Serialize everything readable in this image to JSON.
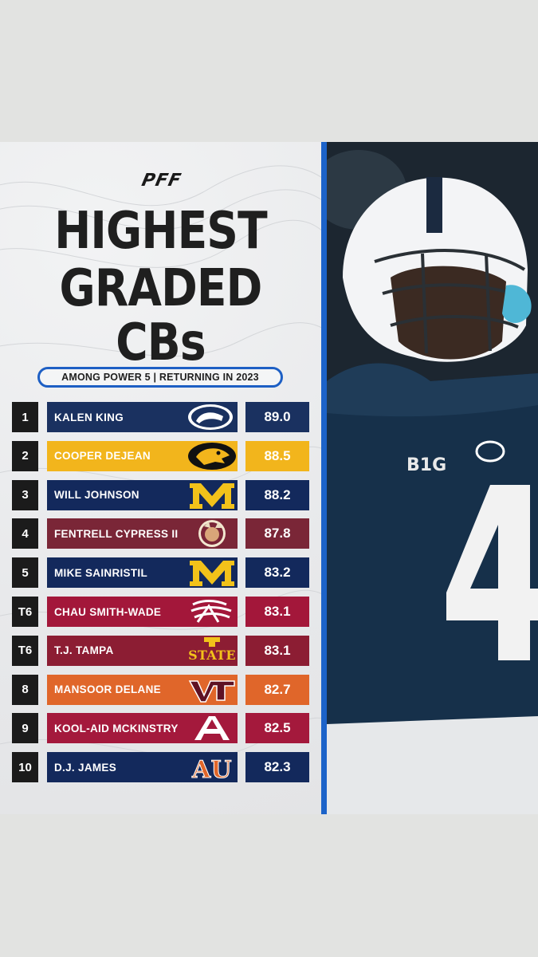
{
  "brand": {
    "logo": "PFF"
  },
  "header": {
    "title_line1": "HIGHEST",
    "title_line2": "GRADED",
    "title_line3": "CBs",
    "subtitle": "AMONG POWER 5 | RETURNING IN 2023"
  },
  "colors": {
    "accent_blue": "#1d5fc4",
    "divider_blue": "#1c63c9"
  },
  "players": [
    {
      "rank": "1",
      "name": "KALEN KING",
      "grade": "89.0",
      "team_logo": "penn-state-logo",
      "bg": "#1a3160",
      "fg": "#ffffff"
    },
    {
      "rank": "2",
      "name": "COOPER DEJEAN",
      "grade": "88.5",
      "team_logo": "iowa-hawkeye-logo",
      "bg": "#f2b51c",
      "fg": "#ffffff"
    },
    {
      "rank": "3",
      "name": "WILL JOHNSON",
      "grade": "88.2",
      "team_logo": "michigan-logo",
      "bg": "#13295c",
      "fg": "#ffffff"
    },
    {
      "rank": "4",
      "name": "FENTRELL CYPRESS II",
      "grade": "87.8",
      "team_logo": "florida-state-logo",
      "bg": "#7a2637",
      "fg": "#ffffff"
    },
    {
      "rank": "5",
      "name": "MIKE SAINRISTIL",
      "grade": "83.2",
      "team_logo": "michigan-logo",
      "bg": "#13295c",
      "fg": "#ffffff"
    },
    {
      "rank": "T6",
      "name": "CHAU SMITH-WADE",
      "grade": "83.1",
      "team_logo": "washington-state-logo",
      "bg": "#a3173a",
      "fg": "#ffffff"
    },
    {
      "rank": "T6",
      "name": "T.J. TAMPA",
      "grade": "83.1",
      "team_logo": "iowa-state-logo",
      "bg": "#8c1d33",
      "fg": "#ffffff"
    },
    {
      "rank": "8",
      "name": "MANSOOR DELANE",
      "grade": "82.7",
      "team_logo": "virginia-tech-logo",
      "bg": "#e0662a",
      "fg": "#ffffff"
    },
    {
      "rank": "9",
      "name": "KOOL-AID MCKINSTRY",
      "grade": "82.5",
      "team_logo": "alabama-logo",
      "bg": "#a4193c",
      "fg": "#ffffff"
    },
    {
      "rank": "10",
      "name": "D.J. JAMES",
      "grade": "82.3",
      "team_logo": "auburn-logo",
      "bg": "#13295c",
      "fg": "#ffffff"
    }
  ],
  "photo": {
    "helmet_logo": "penn-state-logo",
    "jersey_patch": "B1G",
    "jersey_number": "4"
  }
}
